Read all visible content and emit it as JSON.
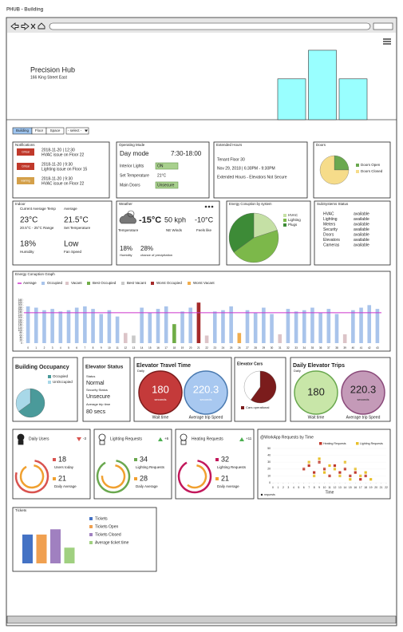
{
  "window_title": "PHUB - Building",
  "header": {
    "title": "Precision Hub",
    "address": "166 King Street East",
    "chart": {
      "type": "bar",
      "values": [
        50,
        85,
        50
      ],
      "ylim": [
        0,
        100
      ],
      "color": "#99ffff"
    }
  },
  "tabs": [
    "Building",
    "Floor",
    "Space"
  ],
  "select": "- select -",
  "notifications": {
    "title": "Notifications",
    "items": [
      {
        "badge": "Critical",
        "time": "2018-11-20 | 12:30",
        "text": "HVAC issue on Floor 22",
        "color": "#c0392b"
      },
      {
        "badge": "Critical",
        "time": "2018-11-20 | 9:30",
        "text": "Lighting issue on Floor 15",
        "color": "#c0392b"
      },
      {
        "badge": "warning",
        "time": "2018-11-20 | 9:30",
        "text": "HVAC issue on Floor 22",
        "color": "#d4a04a"
      }
    ]
  },
  "operating_mode": {
    "title": "Operating Mode",
    "mode": "Day mode",
    "hours": "7:30-18:00",
    "rows": [
      {
        "label": "Interior Lights",
        "value": "ON",
        "highlight": true
      },
      {
        "label": "Set Temperature",
        "value": "21°C",
        "highlight": false
      },
      {
        "label": "Main Doors",
        "value": "Unsecure",
        "highlight": true
      }
    ]
  },
  "extended_hours": {
    "title": "Extended Hours",
    "lines": [
      "Tenant Floor 30",
      "Nov 29, 2018  |  6:30PM - 9:30PM",
      "Extended Hours -  Elevators Not Secure"
    ]
  },
  "doors": {
    "title": "Doors",
    "chart": {
      "type": "pie",
      "categories": [
        "Doors Open",
        "Doors Closed"
      ],
      "values": [
        25,
        75
      ],
      "colors": [
        "#6aa84f",
        "#f6dc8a"
      ]
    }
  },
  "indoor": {
    "title": "Indoor",
    "current_label": "Current Average Temp",
    "average_label": "Average",
    "current": "23°C",
    "average": "21.5°C",
    "range": "20.5°C - 25°C Range",
    "set_label": "Set Temperature",
    "humidity": "18%",
    "humidity_label": "Humidity",
    "fan": "Low",
    "fan_label": "Fan Speed"
  },
  "weather": {
    "title": "Weather",
    "temperature": "-15°C",
    "temperature_label": "Temperature",
    "wind": "50 kph",
    "wind_label": "NE Winds",
    "feels": "-10°C",
    "feels_label": "Feels like",
    "humidity": "18%",
    "humidity_label": "Humidity",
    "precipitation": "28%",
    "precipitation_label": "chance of precipitation"
  },
  "energy_by_system": {
    "title": "Energy Conuption by system",
    "chart": {
      "type": "pie",
      "categories": [
        "HVAC",
        "Lighting",
        "Plugs"
      ],
      "values": [
        20,
        45,
        35
      ],
      "colors": [
        "#c5e0a5",
        "#7cb84a",
        "#3d8b37"
      ]
    }
  },
  "subsystems": {
    "title": "SubSystems Status",
    "rows": [
      [
        "HVAC",
        "available"
      ],
      [
        "Lighting",
        "available"
      ],
      [
        "Meters",
        "available"
      ],
      [
        "Security",
        "available"
      ],
      [
        "Doors",
        "available"
      ],
      [
        "Elevators",
        "available"
      ],
      [
        "Cameras",
        "available"
      ]
    ]
  },
  "energy_graph": {
    "type": "bar",
    "title": "Energy Conuption Graph",
    "legend": [
      {
        "name": "Average",
        "color": "#cc33cc"
      },
      {
        "name": "Occupied",
        "color": "#a9c4eb"
      },
      {
        "name": "Vacant",
        "color": "#dcc4c8"
      },
      {
        "name": "Best Occupied",
        "color": "#70ad47"
      },
      {
        "name": "Best Vacant",
        "color": "#c9c9c9"
      },
      {
        "name": "Worst Occupied",
        "color": "#a52a2a"
      },
      {
        "name": "Worst Vacant",
        "color": "#f0ad4e"
      }
    ],
    "average": 240,
    "categories": [
      0,
      1,
      2,
      3,
      4,
      5,
      6,
      7,
      8,
      9,
      10,
      11,
      12,
      13,
      14,
      15,
      16,
      17,
      18,
      19,
      20,
      21,
      22,
      23,
      24,
      25,
      26,
      27,
      28,
      29,
      30,
      31,
      32,
      33,
      34,
      35,
      36,
      37,
      38,
      39,
      40,
      41,
      42,
      43
    ],
    "values": [
      290,
      280,
      260,
      270,
      250,
      260,
      280,
      290,
      270,
      230,
      260,
      210,
      80,
      60,
      280,
      240,
      270,
      290,
      150,
      250,
      280,
      320,
      60,
      250,
      260,
      290,
      80,
      260,
      240,
      280,
      230,
      70,
      270,
      250,
      260,
      280,
      240,
      270,
      230,
      70,
      260,
      280,
      300,
      270
    ],
    "colors": [
      "#a9c4eb",
      "#a9c4eb",
      "#a9c4eb",
      "#a9c4eb",
      "#a9c4eb",
      "#a9c4eb",
      "#a9c4eb",
      "#a9c4eb",
      "#a9c4eb",
      "#a9c4eb",
      "#a9c4eb",
      "#a9c4eb",
      "#dcc4c8",
      "#c9c9c9",
      "#a9c4eb",
      "#a9c4eb",
      "#a9c4eb",
      "#a9c4eb",
      "#70ad47",
      "#a9c4eb",
      "#a9c4eb",
      "#a52a2a",
      "#dcc4c8",
      "#a9c4eb",
      "#a9c4eb",
      "#a9c4eb",
      "#f0ad4e",
      "#a9c4eb",
      "#a9c4eb",
      "#a9c4eb",
      "#a9c4eb",
      "#dcc4c8",
      "#a9c4eb",
      "#a9c4eb",
      "#a9c4eb",
      "#a9c4eb",
      "#a9c4eb",
      "#a9c4eb",
      "#a9c4eb",
      "#dcc4c8",
      "#a9c4eb",
      "#a9c4eb",
      "#a9c4eb",
      "#a9c4eb"
    ],
    "ylim": [
      0,
      340
    ],
    "yticks": [
      0,
      20,
      40,
      60,
      80,
      100,
      120,
      140,
      160,
      180,
      200,
      220,
      240,
      260,
      280,
      300,
      320,
      340
    ]
  },
  "occupancy": {
    "title": "Building Occupancy",
    "chart": {
      "type": "pie",
      "categories": [
        "Occupied",
        "UnOccupied"
      ],
      "values": [
        65,
        35
      ],
      "colors": [
        "#4a9a9a",
        "#a8d8e8"
      ]
    }
  },
  "elevator_status": {
    "title": "Elevator Status",
    "status_label": "Status",
    "status": "Normal",
    "security_label": "Security Status",
    "security": "Unsecure",
    "trip_label": "Average trip time",
    "trip": "80 secs"
  },
  "elevator_travel": {
    "title": "Elevator Travel Time",
    "period": "Daily",
    "items": [
      {
        "value": "180",
        "unit": "seconds",
        "label": "Wait time"
      },
      {
        "value": "220.3",
        "unit": "seconds",
        "label": "Average trip Speed"
      }
    ]
  },
  "elevator_cars": {
    "title": "Elevator Cars",
    "chart": {
      "type": "pie",
      "categories": [
        "Cars operational",
        null
      ],
      "values": [
        60,
        40
      ],
      "colors": [
        "#7b1c1c",
        "#ffffff"
      ]
    }
  },
  "elevator_trips": {
    "title": "Daily Elevator Trips",
    "period": "Daily",
    "items": [
      {
        "value": "180",
        "label": "Wait time"
      },
      {
        "value": "220.3",
        "unit": "seconds",
        "label": "Average trip Speed"
      }
    ]
  },
  "widgets": [
    {
      "title": "Daily Users",
      "delta": "-3",
      "up": false,
      "today": 18,
      "today_label": "Users today",
      "average": 21,
      "average_label": "Daily Average",
      "colors": [
        "#d9534f",
        "#f0a030"
      ]
    },
    {
      "title": "Lighting Requests",
      "delta": "+6",
      "up": true,
      "today": 34,
      "today_label": "Lighting Requests",
      "average": 28,
      "average_label": "Daily Average",
      "colors": [
        "#6aa84f",
        "#f0a030"
      ]
    },
    {
      "title": "Heating Requests",
      "delta": "+11",
      "up": true,
      "today": 32,
      "today_label": "Lighting Requests",
      "average": 21,
      "average_label": "Daily Average",
      "colors": [
        "#c2185b",
        "#f0a030"
      ]
    }
  ],
  "workapp": {
    "type": "scatter",
    "title": "@WorkApp Requests by Time",
    "xlabel": "Time",
    "note": "requests",
    "xlim": [
      0,
      22
    ],
    "xticks": [
      0,
      1,
      2,
      3,
      4,
      5,
      6,
      7,
      8,
      9,
      10,
      11,
      12,
      13,
      14,
      15,
      16,
      17,
      18,
      19,
      20,
      21,
      22
    ],
    "ylim": [
      0,
      50
    ],
    "yticks": [
      0,
      10,
      20,
      30,
      40,
      50
    ],
    "series": [
      {
        "name": "Heating Requests",
        "color": "#c0392b",
        "x": [
          6,
          7,
          8,
          9,
          10,
          11,
          12,
          13,
          14,
          15,
          16,
          17,
          18
        ],
        "values": [
          20,
          25,
          15,
          30,
          20,
          10,
          25,
          15,
          20,
          10,
          15,
          5,
          10
        ]
      },
      {
        "name": "Lighting Requests",
        "color": "#e8c02a",
        "x": [
          7,
          8,
          9,
          10,
          11,
          12,
          13,
          14,
          15,
          16,
          17,
          18,
          19
        ],
        "values": [
          30,
          10,
          35,
          15,
          25,
          20,
          10,
          30,
          5,
          20,
          10,
          15,
          5
        ]
      }
    ]
  },
  "tickets": {
    "type": "bar",
    "title": "Tickets",
    "categories": [
      "Tickets",
      "Tickets Open",
      "Tickets Closed",
      "Average ticket time"
    ],
    "values": [
      55,
      55,
      65,
      30
    ],
    "colors": [
      "#4472c4",
      "#f0a050",
      "#a080c0",
      "#a0d080"
    ],
    "ylim": [
      0,
      70
    ]
  }
}
